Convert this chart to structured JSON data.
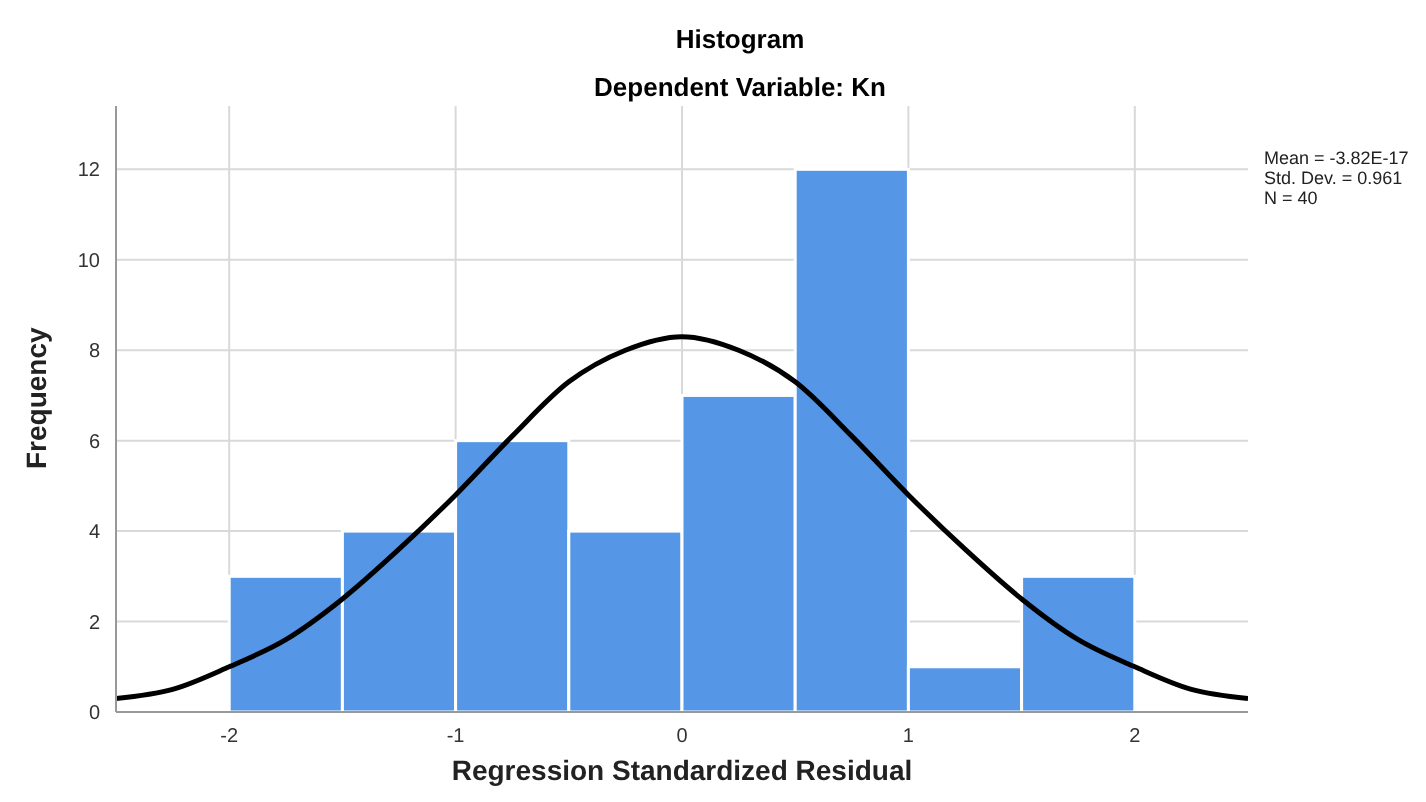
{
  "chart_data": {
    "type": "histogram",
    "title": "Histogram",
    "subtitle": "Dependent Variable: Kn",
    "xlabel": "Regression Standardized Residual",
    "ylabel": "Frequency",
    "bins": [
      -2,
      -1.5,
      -1,
      -0.5,
      0,
      0.5,
      1,
      1.5,
      2
    ],
    "values": [
      3,
      4,
      6,
      4,
      7,
      12,
      1,
      3
    ],
    "color": "#5596e6",
    "series": [
      {
        "type": "line",
        "color": "#000000",
        "x": [
          -2.5,
          -2.25,
          -2,
          -1.75,
          -1.5,
          -1.25,
          -1,
          -0.75,
          -0.5,
          -0.25,
          0,
          0.25,
          0.5,
          0.75,
          1,
          1.25,
          1.5,
          1.75,
          2,
          2.25,
          2.5
        ],
        "values": [
          0.3,
          0.5,
          1.0,
          1.6,
          2.5,
          3.6,
          4.8,
          6.1,
          7.3,
          8.0,
          8.3,
          8.0,
          7.3,
          6.1,
          4.8,
          3.6,
          2.5,
          1.6,
          1.0,
          0.5,
          0.3
        ]
      }
    ],
    "xlim": [
      -2.5,
      2.5
    ],
    "xticks": [
      -2,
      -1,
      0,
      1,
      2
    ],
    "ylim": [
      0,
      13.4
    ],
    "yticks": [
      0,
      2,
      4,
      6,
      8,
      10,
      12
    ],
    "grid": true,
    "legend": false,
    "marker": "none",
    "line_style": "solid",
    "annotations": [
      "Mean = -3.82E-17",
      "Std. Dev. = 0.961",
      "N = 40"
    ]
  }
}
